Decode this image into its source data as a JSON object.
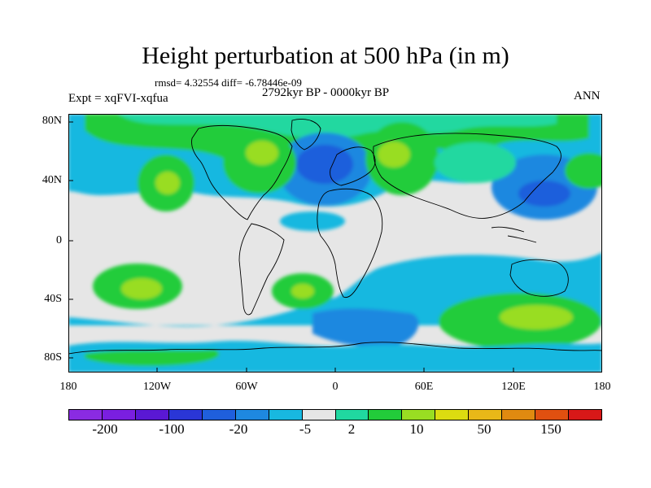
{
  "title": "Height perturbation at 500 hPa (in m)",
  "stats": "rmsd= 4.32554 diff= -6.78446e-09",
  "experiment": "Expt = xqFVI-xqfua",
  "period": "2792kyr BP - 0000kyr BP",
  "season": "ANN",
  "y_axis_labels": [
    "80N",
    "40N",
    "0",
    "40S",
    "80S"
  ],
  "x_axis_labels": [
    "180",
    "120W",
    "60W",
    "0",
    "60E",
    "120E",
    "180"
  ],
  "colorbar": {
    "colors": [
      "#8a2be2",
      "#7a1fe0",
      "#5a18d4",
      "#2a36d6",
      "#1f5fdc",
      "#1e88e0",
      "#18b8e0",
      "#e6e6e6",
      "#20d8a0",
      "#22cc3a",
      "#99dd22",
      "#dcdc10",
      "#e8b818",
      "#e08a10",
      "#e05010",
      "#d81818"
    ],
    "labels": [
      "-200",
      "-100",
      "-20",
      "-5",
      "2",
      "10",
      "50",
      "150"
    ]
  }
}
